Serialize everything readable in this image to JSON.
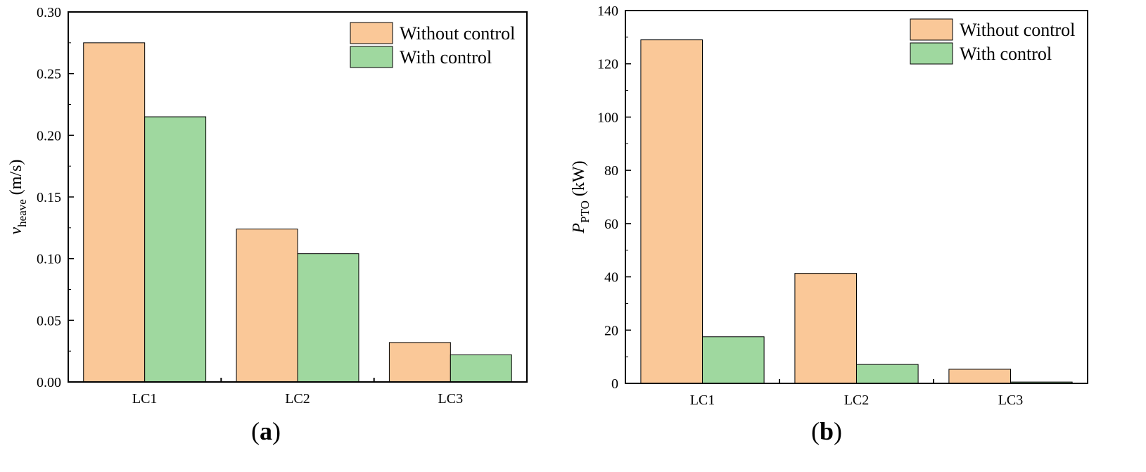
{
  "chart_data": [
    {
      "type": "bar",
      "panel_label": "a",
      "ylabel": {
        "main": "v",
        "sub": "heave",
        "unit": "(m/s)"
      },
      "categories": [
        "LC1",
        "LC2",
        "LC3"
      ],
      "series": [
        {
          "name": "Without control",
          "color": "#fac898",
          "values": [
            0.275,
            0.124,
            0.032
          ]
        },
        {
          "name": "With control",
          "color": "#9fd89f",
          "values": [
            0.215,
            0.104,
            0.022
          ]
        }
      ],
      "ylim": [
        0,
        0.3
      ],
      "yticks": [
        "0.00",
        "0.05",
        "0.10",
        "0.15",
        "0.20",
        "0.25",
        "0.30"
      ],
      "legend_position": "top-right"
    },
    {
      "type": "bar",
      "panel_label": "b",
      "ylabel": {
        "main": "P",
        "sub": "PTO",
        "unit": "(kW)"
      },
      "categories": [
        "LC1",
        "LC2",
        "LC3"
      ],
      "series": [
        {
          "name": "Without control",
          "color": "#fac898",
          "values": [
            129,
            41.3,
            5.3
          ]
        },
        {
          "name": "With control",
          "color": "#9fd89f",
          "values": [
            17.5,
            7.1,
            0.5
          ]
        }
      ],
      "ylim": [
        0,
        140
      ],
      "yticks": [
        "0",
        "20",
        "40",
        "60",
        "80",
        "100",
        "120",
        "140"
      ],
      "legend_position": "top-right"
    }
  ]
}
